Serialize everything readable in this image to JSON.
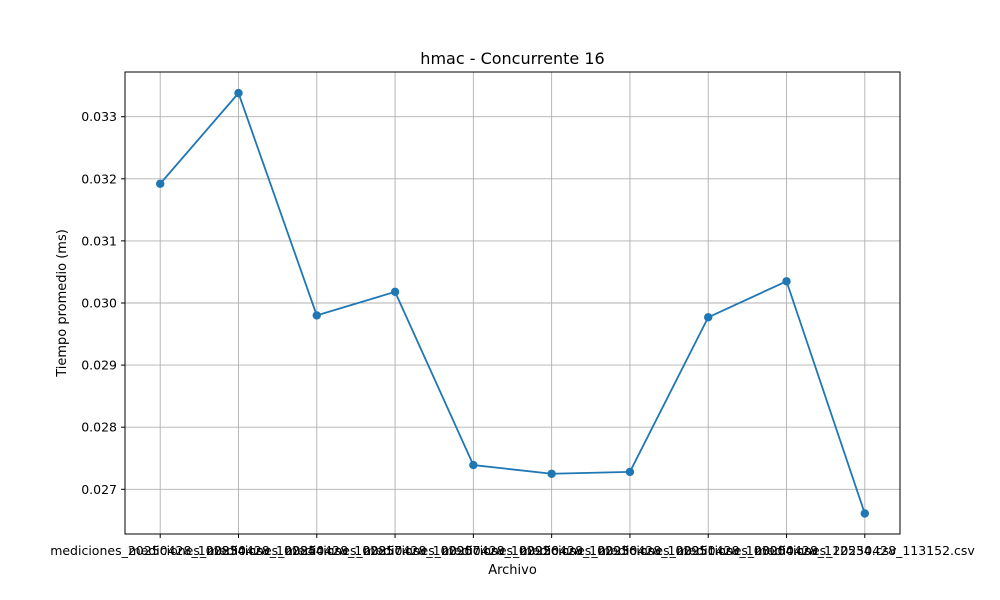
{
  "chart_data": {
    "type": "line",
    "title": "hmac - Concurrente 16",
    "xlabel": "Archivo",
    "ylabel": "Tiempo promedio (ms)",
    "categories": [
      "mediciones_20250428_102834.csv",
      "mediciones_20250428_102844.csv",
      "mediciones_20250428_102857.csv",
      "mediciones_20250428_102907.csv",
      "mediciones_20250428_102926.csv",
      "mediciones_20250428_102936.csv",
      "mediciones_20250428_102951.csv",
      "mediciones_20250428_103004.csv",
      "mediciones_20250428_112534.csv",
      "mediciones_20250428_113152.csv"
    ],
    "values": [
      0.03192,
      0.03338,
      0.0298,
      0.03018,
      0.02739,
      0.02725,
      0.02728,
      0.02977,
      0.03035,
      0.02661
    ],
    "ylim": [
      0.02628,
      0.03372
    ],
    "yticks": [
      0.027,
      0.028,
      0.029,
      0.03,
      0.031,
      0.032,
      0.033
    ],
    "ytick_labels": [
      "0.027",
      "0.028",
      "0.029",
      "0.030",
      "0.031",
      "0.032",
      "0.033"
    ],
    "grid": true,
    "color": "#1f77b4"
  }
}
